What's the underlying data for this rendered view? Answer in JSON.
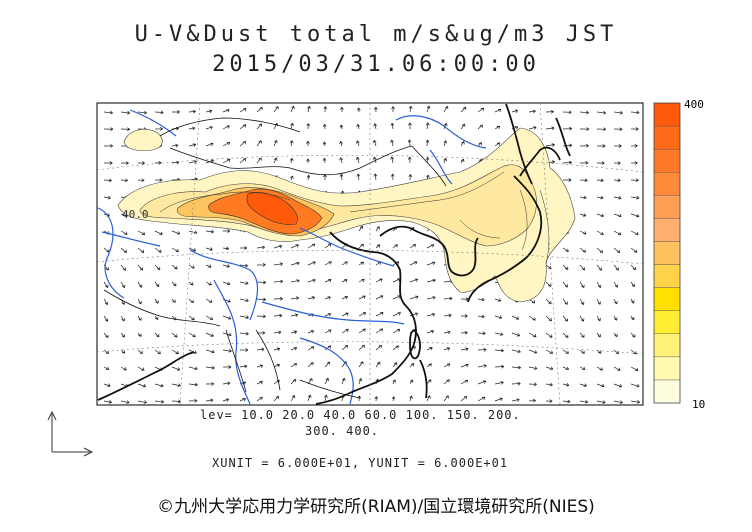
{
  "title": {
    "line1": "U-V&Dust total m/s&ug/m3 JST",
    "line2": "2015/03/31.06:00:00"
  },
  "legend": {
    "levels_line1": "lev= 10.0 20.0 40.0 60.0 100. 150. 200.",
    "levels_line2": "300. 400.",
    "levels": [
      10,
      20,
      40,
      60,
      100,
      150,
      200,
      300,
      400
    ]
  },
  "units_text": "XUNIT = 6.000E+01, YUNIT = 6.000E+01",
  "colorbar": {
    "max_label": "400",
    "min_label": "10",
    "colors": [
      "#fffde0",
      "#fff9b0",
      "#fff27a",
      "#ffee33",
      "#ffe000",
      "#ffd24a",
      "#ffc25e",
      "#ffb070",
      "#ff9f55",
      "#ff8a3a",
      "#ff7a28",
      "#ff6a18",
      "#ff5a0a"
    ]
  },
  "map_labels": {
    "contour_label_40": "40.0"
  },
  "copyright": "©九州大学応用力学研究所(RIAM)/国立環境研究所(NIES)",
  "colors": {
    "rivers": "#2a5ed8",
    "coast": "#111111",
    "dust_low": "#fff3b8",
    "dust_high": "#ff5a0a"
  }
}
